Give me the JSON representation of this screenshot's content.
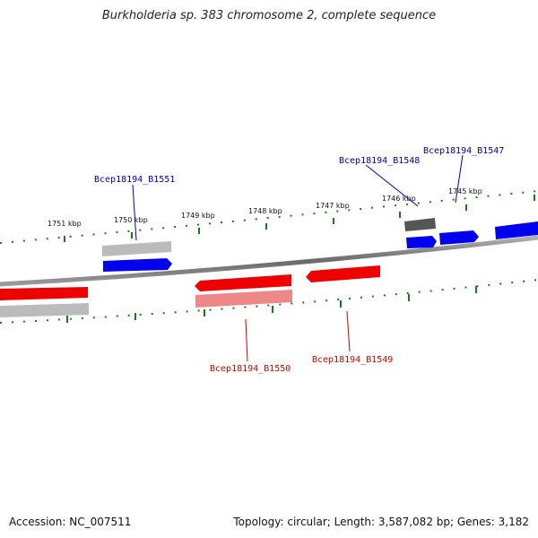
{
  "title": "Burkholderia sp. 383 chromosome 2, complete sequence",
  "footer": {
    "accession": "Accession: NC_007511",
    "summary": "Topology: circular; Length: 3,587,082 bp; Genes: 3,182"
  },
  "colors": {
    "forward": "#0000ee",
    "reverse": "#ee0000",
    "forward_label": "#0000aa",
    "reverse_label": "#cc0000",
    "backbone": "#777777",
    "ticks": "#1a7a1a"
  },
  "ticks": [
    {
      "label": "1751 kbp"
    },
    {
      "label": "1750 kbp"
    },
    {
      "label": "1749 kbp"
    },
    {
      "label": "1748 kbp"
    },
    {
      "label": "1747 kbp"
    },
    {
      "label": "1746 kbp"
    },
    {
      "label": "1745 kbp"
    }
  ],
  "genes": {
    "b1551": "Bcep18194_B1551",
    "b1550": "Bcep18194_B1550",
    "b1549": "Bcep18194_B1549",
    "b1548": "Bcep18194_B1548",
    "b1547": "Bcep18194_B1547"
  }
}
